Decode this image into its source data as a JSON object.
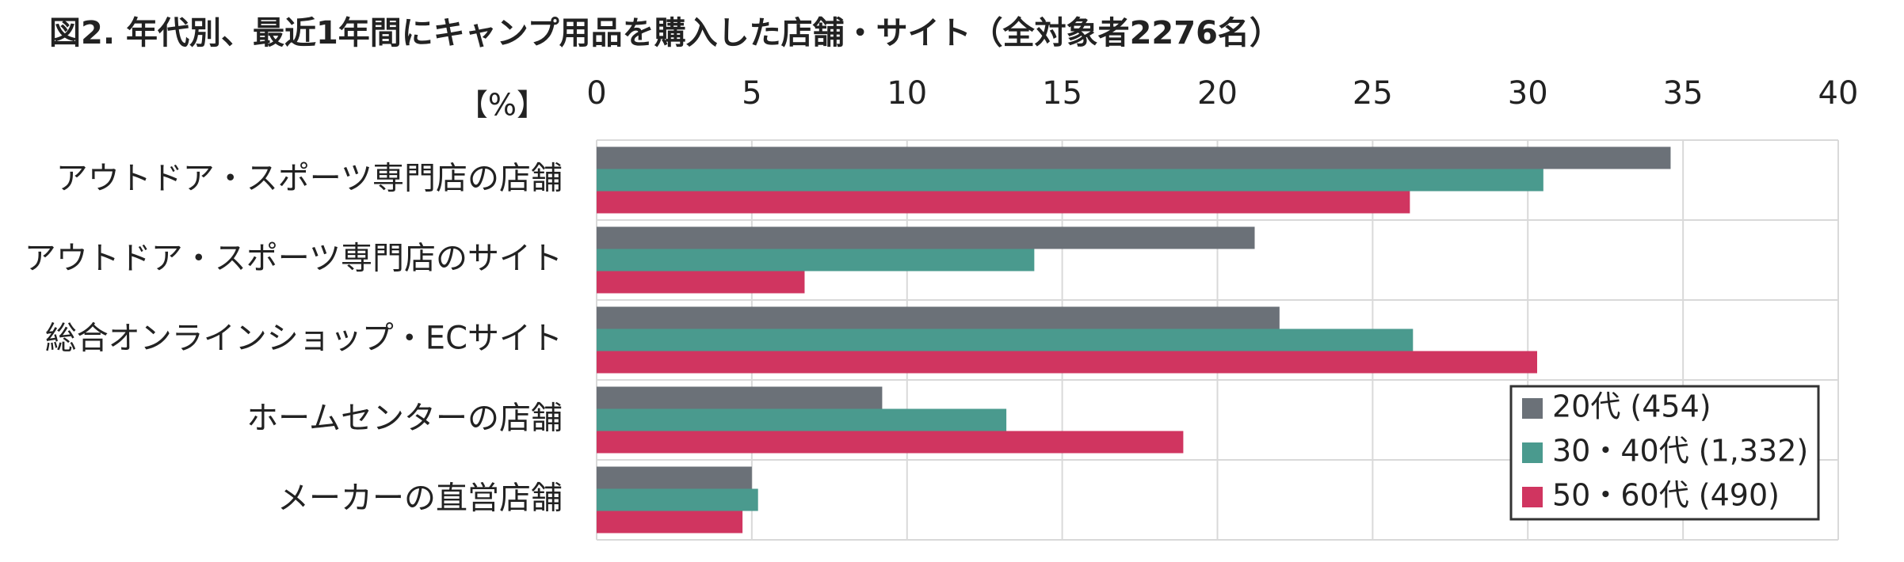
{
  "chart_data": {
    "type": "bar",
    "orientation": "horizontal",
    "title": "図2. 年代別、最近1年間にキャンプ用品を購入した店舗・サイト（全対象者2276名）",
    "xlabel": "【%】",
    "categories": [
      "アウトドア・スポーツ専門店の店舗",
      "アウトドア・スポーツ専門店のサイト",
      "総合オンラインショップ・ECサイト",
      "ホームセンターの店舗",
      "メーカーの直営店舗"
    ],
    "series": [
      {
        "name": "20代 (454)",
        "color": "#6b7178",
        "values": [
          34.6,
          21.2,
          22.0,
          9.2,
          5.0
        ]
      },
      {
        "name": "30・40代 (1,332)",
        "color": "#4a9a8e",
        "values": [
          30.5,
          14.1,
          26.3,
          13.2,
          5.2
        ]
      },
      {
        "name": "50・60代 (490)",
        "color": "#d03560",
        "values": [
          26.2,
          6.7,
          30.3,
          18.9,
          4.7
        ]
      }
    ],
    "xlim": [
      0,
      40
    ],
    "xticks": [
      0,
      5,
      10,
      15,
      20,
      25,
      30,
      35,
      40
    ],
    "grid": true,
    "legend": "lower right"
  }
}
